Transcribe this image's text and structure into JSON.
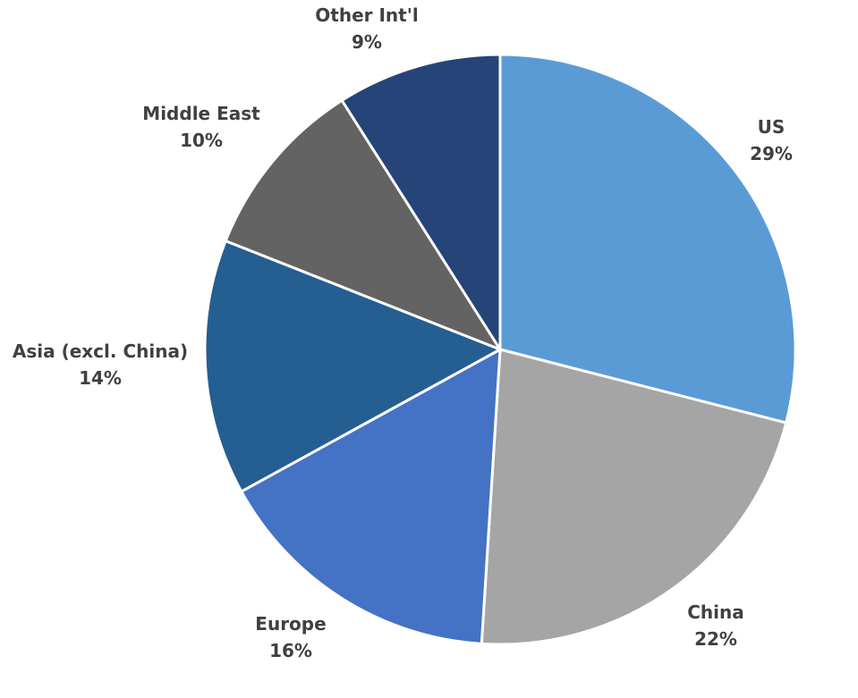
{
  "chart_data": {
    "type": "pie",
    "title": "",
    "slices": [
      {
        "label": "US",
        "value": 29,
        "value_label": "29%",
        "color": "#5b9bd5"
      },
      {
        "label": "China",
        "value": 22,
        "value_label": "22%",
        "color": "#a5a5a5"
      },
      {
        "label": "Europe",
        "value": 16,
        "value_label": "16%",
        "color": "#4472c4"
      },
      {
        "label": "Asia (excl. China)",
        "value": 14,
        "value_label": "14%",
        "color": "#255e91"
      },
      {
        "label": "Middle East",
        "value": 10,
        "value_label": "10%",
        "color": "#636363"
      },
      {
        "label": "Other Int'l",
        "value": 9,
        "value_label": "9%",
        "color": "#264478"
      }
    ],
    "start_angle": "12 o'clock",
    "direction": "clockwise",
    "legend": "none",
    "labels": "outside slices"
  }
}
